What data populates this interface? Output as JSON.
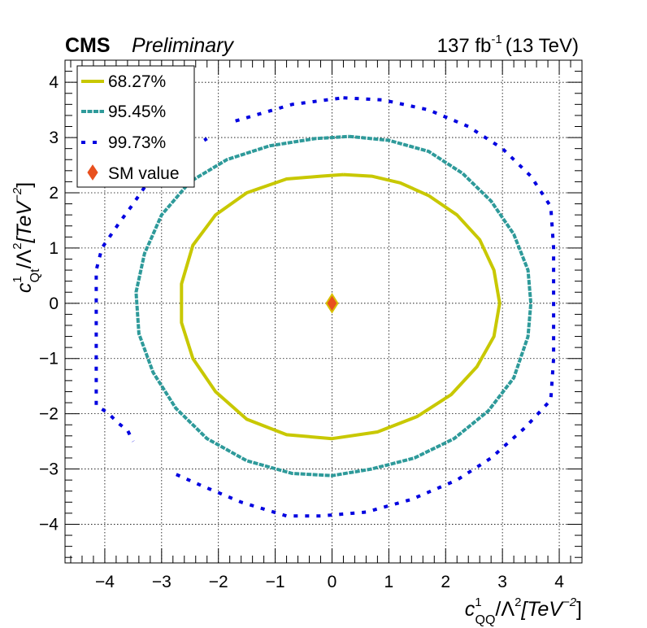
{
  "header": {
    "experiment": "CMS",
    "status": "Preliminary",
    "luminosity": "137 fb",
    "lumi_exponent": "-1",
    "energy": "(13 TeV)"
  },
  "chart_data": {
    "type": "scatter",
    "title": "",
    "xlabel": {
      "symbol": "c",
      "sup": "1",
      "sub": "QQ",
      "rest": "/Λ",
      "rest_sup": "2",
      "unit": "[TeV",
      "unit_sup": "−2",
      "close": "]"
    },
    "ylabel": {
      "symbol": "c",
      "sup": "1",
      "sub": "Qt",
      "rest": "/Λ",
      "rest_sup": "2",
      "unit": "[TeV",
      "unit_sup": "−2",
      "close": "]"
    },
    "xlim": [
      -4.7,
      4.4
    ],
    "ylim": [
      -4.7,
      4.4
    ],
    "x_ticks": [
      -4,
      -3,
      -2,
      -1,
      0,
      1,
      2,
      3,
      4
    ],
    "y_ticks": [
      -4,
      -3,
      -2,
      -1,
      0,
      1,
      2,
      3,
      4
    ],
    "x_tick_labels": [
      "−4",
      "−3",
      "−2",
      "−1",
      "0",
      "1",
      "2",
      "3",
      "4"
    ],
    "y_tick_labels": [
      "−4",
      "−3",
      "−2",
      "−1",
      "0",
      "1",
      "2",
      "3",
      "4"
    ],
    "grid": true,
    "legend_position": "top-left",
    "series": [
      {
        "name": "68.27%",
        "style": "solid",
        "color": "#c8c800",
        "points": [
          [
            0.2,
            2.33
          ],
          [
            0.7,
            2.3
          ],
          [
            1.2,
            2.18
          ],
          [
            1.7,
            1.95
          ],
          [
            2.2,
            1.6
          ],
          [
            2.6,
            1.15
          ],
          [
            2.85,
            0.6
          ],
          [
            2.95,
            0.0
          ],
          [
            2.85,
            -0.6
          ],
          [
            2.55,
            -1.15
          ],
          [
            2.1,
            -1.65
          ],
          [
            1.5,
            -2.05
          ],
          [
            0.8,
            -2.33
          ],
          [
            0.0,
            -2.45
          ],
          [
            -0.8,
            -2.38
          ],
          [
            -1.5,
            -2.1
          ],
          [
            -2.05,
            -1.6
          ],
          [
            -2.45,
            -1.0
          ],
          [
            -2.65,
            -0.35
          ],
          [
            -2.65,
            0.35
          ],
          [
            -2.45,
            1.05
          ],
          [
            -2.05,
            1.6
          ],
          [
            -1.5,
            2.0
          ],
          [
            -0.8,
            2.25
          ],
          [
            -0.2,
            2.3
          ],
          [
            0.2,
            2.33
          ]
        ]
      },
      {
        "name": "95.45%",
        "style": "dashed",
        "color": "#2e9a9a",
        "points": [
          [
            0.3,
            3.02
          ],
          [
            1.0,
            2.95
          ],
          [
            1.7,
            2.75
          ],
          [
            2.3,
            2.35
          ],
          [
            2.8,
            1.85
          ],
          [
            3.2,
            1.25
          ],
          [
            3.45,
            0.6
          ],
          [
            3.5,
            0.0
          ],
          [
            3.45,
            -0.6
          ],
          [
            3.2,
            -1.35
          ],
          [
            2.75,
            -1.95
          ],
          [
            2.15,
            -2.45
          ],
          [
            1.45,
            -2.8
          ],
          [
            0.7,
            -3.0
          ],
          [
            0.0,
            -3.12
          ],
          [
            -0.7,
            -3.08
          ],
          [
            -1.5,
            -2.85
          ],
          [
            -2.2,
            -2.45
          ],
          [
            -2.75,
            -1.9
          ],
          [
            -3.15,
            -1.25
          ],
          [
            -3.4,
            -0.55
          ],
          [
            -3.45,
            0.2
          ],
          [
            -3.3,
            0.9
          ],
          [
            -3.0,
            1.6
          ],
          [
            -2.5,
            2.2
          ],
          [
            -1.85,
            2.6
          ],
          [
            -1.1,
            2.85
          ],
          [
            -0.3,
            2.98
          ],
          [
            0.3,
            3.02
          ]
        ]
      },
      {
        "name": "99.73%",
        "style": "dotted",
        "color": "#0000e0",
        "points": [
          [
            0.2,
            3.72
          ],
          [
            0.9,
            3.68
          ],
          [
            1.7,
            3.5
          ],
          [
            2.4,
            3.2
          ],
          [
            3.0,
            2.8
          ],
          [
            3.5,
            2.3
          ],
          [
            3.85,
            1.75
          ],
          [
            3.9,
            1.0
          ],
          [
            3.9,
            0.0
          ],
          [
            3.9,
            -1.0
          ],
          [
            3.85,
            -1.75
          ],
          [
            3.4,
            -2.25
          ],
          [
            2.8,
            -2.8
          ],
          [
            2.2,
            -3.2
          ],
          [
            1.4,
            -3.55
          ],
          [
            0.6,
            -3.78
          ],
          [
            -0.2,
            -3.85
          ],
          [
            -0.8,
            -3.85
          ],
          [
            -1.6,
            -3.6
          ],
          [
            -2.3,
            -3.3
          ],
          [
            -2.85,
            -3.05
          ]
        ],
        "segments": [
          [
            [
              -2.25,
              2.95
            ],
            [
              -2.2,
              2.98
            ]
          ],
          [
            [
              -1.7,
              3.3
            ],
            [
              -0.7,
              3.6
            ],
            [
              0.2,
              3.72
            ]
          ],
          [
            [
              -3.3,
              2.1
            ],
            [
              -3.5,
              1.8
            ],
            [
              -3.75,
              1.45
            ],
            [
              -4.05,
              1.0
            ],
            [
              -4.15,
              0.6
            ],
            [
              -4.15,
              -0.3
            ],
            [
              -4.15,
              -1.2
            ],
            [
              -4.15,
              -1.85
            ],
            [
              -3.95,
              -1.98
            ],
            [
              -3.75,
              -2.18
            ],
            [
              -3.6,
              -2.3
            ],
            [
              -3.5,
              -2.5
            ]
          ]
        ]
      },
      {
        "name": "SM value",
        "style": "marker",
        "marker": "diamond",
        "color": "#e8501e",
        "edge_color": "#d8c000",
        "points": [
          [
            0,
            0
          ]
        ]
      }
    ]
  }
}
